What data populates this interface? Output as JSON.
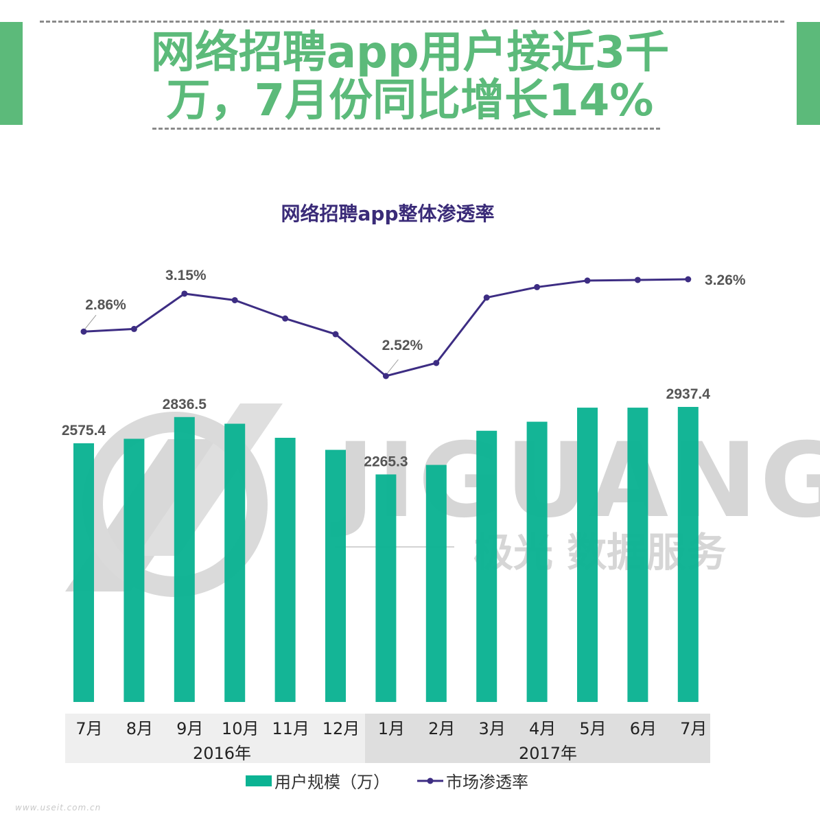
{
  "header": {
    "title_line1": "网络招聘app用户接近3千",
    "title_line2": "万，7月份同比增长14%"
  },
  "watermark": {
    "brand": "JIGUANG",
    "tagline": "极光 数据服务"
  },
  "footer": {
    "url": "www.useit.com.cn"
  },
  "colors": {
    "accent_green": "#5cba7a",
    "bar": "#0cb393",
    "line": "#3d2d83",
    "title_purple": "#3a2b78"
  },
  "chart_data": {
    "type": "bar+line",
    "title": "网络招聘app整体渗透率",
    "categories": [
      "7月",
      "8月",
      "9月",
      "10月",
      "11月",
      "12月",
      "1月",
      "2月",
      "3月",
      "4月",
      "5月",
      "6月",
      "7月"
    ],
    "groups": [
      {
        "label": "2016年",
        "count": 6
      },
      {
        "label": "2017年",
        "count": 7
      }
    ],
    "series": [
      {
        "name": "用户规模（万）",
        "kind": "bar",
        "values": [
          2575.4,
          2620,
          2836.5,
          2770,
          2630,
          2510,
          2265.3,
          2360,
          2700,
          2790,
          2930,
          2930,
          2937.4
        ],
        "labels": [
          "2575.4",
          "",
          "2836.5",
          "",
          "",
          "",
          "2265.3",
          "",
          "",
          "",
          "",
          "",
          "2937.4"
        ]
      },
      {
        "name": "市场渗透率",
        "kind": "line",
        "values": [
          2.86,
          2.88,
          3.15,
          3.1,
          2.96,
          2.84,
          2.52,
          2.62,
          3.12,
          3.2,
          3.25,
          3.255,
          3.26
        ],
        "labels": [
          "2.86%",
          "",
          "3.15%",
          "",
          "",
          "",
          "2.52%",
          "",
          "",
          "",
          "",
          "",
          "3.26%"
        ]
      }
    ],
    "bar_axis_range": [
      0,
      3000
    ],
    "line_axis_range": [
      2.4,
      3.35
    ],
    "grid": false,
    "legend_position": "bottom"
  }
}
